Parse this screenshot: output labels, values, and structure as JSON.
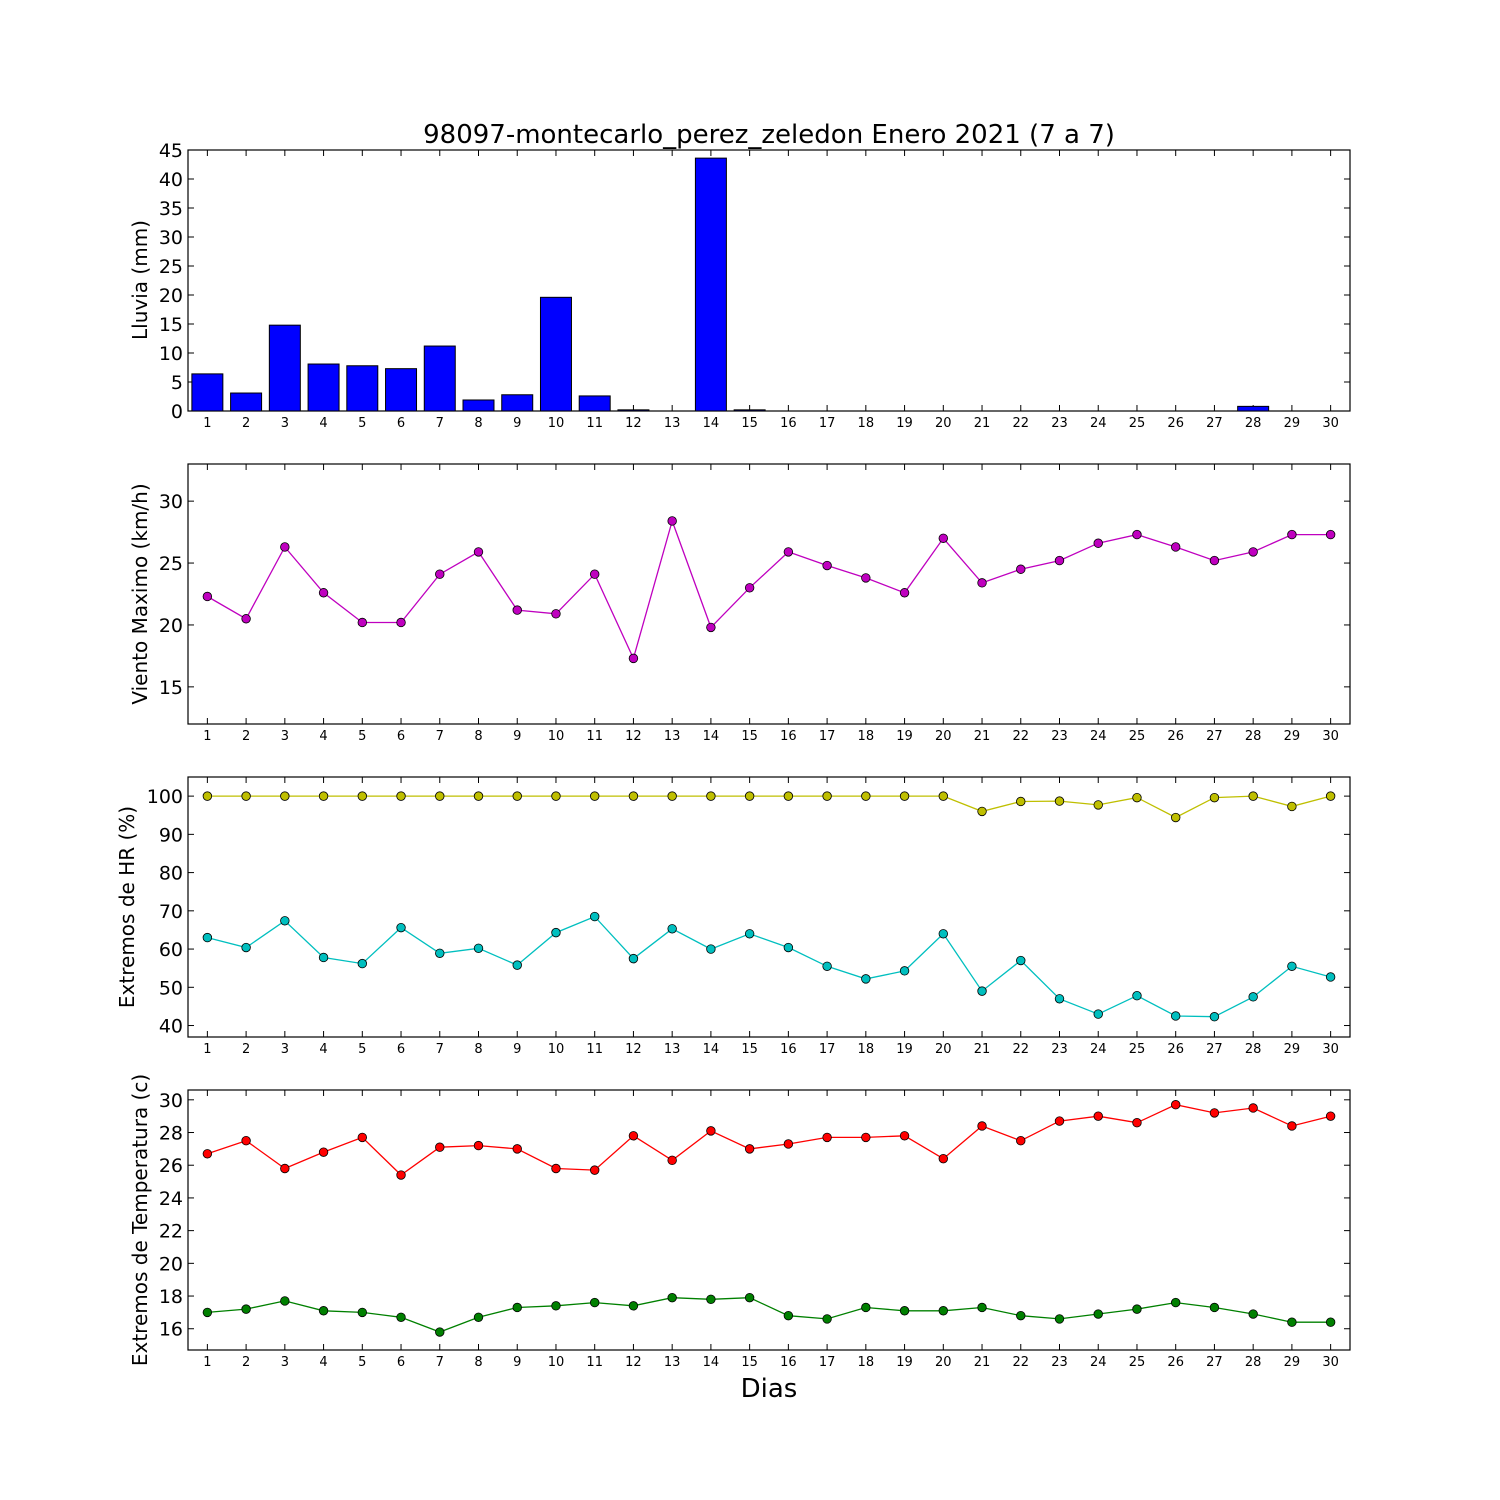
{
  "title": "98097-montecarlo_perez_zeledon Enero 2021  (7 a 7)",
  "xlabel": "Dias",
  "chart_data": [
    {
      "type": "bar",
      "ylabel": "Lluvia (mm)",
      "ylim": [
        0,
        45
      ],
      "yticks": [
        0,
        5,
        10,
        15,
        20,
        25,
        30,
        35,
        40,
        45
      ],
      "categories": [
        1,
        2,
        3,
        4,
        5,
        6,
        7,
        8,
        9,
        10,
        11,
        12,
        13,
        14,
        15,
        16,
        17,
        18,
        19,
        20,
        21,
        22,
        23,
        24,
        25,
        26,
        27,
        28,
        29,
        30
      ],
      "series": [
        {
          "color": "#0000ff",
          "values": [
            6.4,
            3.1,
            14.8,
            8.1,
            7.8,
            7.3,
            11.2,
            1.9,
            2.8,
            19.6,
            2.6,
            0.2,
            0,
            43.6,
            0.2,
            0,
            0,
            0,
            0,
            0,
            0,
            0,
            0,
            0,
            0,
            0,
            0,
            0.8,
            0,
            0
          ]
        }
      ]
    },
    {
      "type": "line",
      "ylabel": "Viento Maximo (km/h)",
      "ylim": [
        12,
        33
      ],
      "yticks": [
        15,
        20,
        25,
        30
      ],
      "categories": [
        1,
        2,
        3,
        4,
        5,
        6,
        7,
        8,
        9,
        10,
        11,
        12,
        13,
        14,
        15,
        16,
        17,
        18,
        19,
        20,
        21,
        22,
        23,
        24,
        25,
        26,
        27,
        28,
        29,
        30
      ],
      "series": [
        {
          "color": "#bf00bf",
          "values": [
            22.3,
            20.5,
            26.3,
            22.6,
            20.2,
            20.2,
            24.1,
            25.9,
            21.2,
            20.9,
            24.1,
            17.3,
            28.4,
            19.8,
            23.0,
            25.9,
            24.8,
            23.8,
            22.6,
            27.0,
            23.4,
            24.5,
            25.2,
            26.6,
            27.3,
            26.3,
            25.2,
            25.9,
            27.3,
            27.3
          ]
        }
      ]
    },
    {
      "type": "line",
      "ylabel": "Extremos de HR (%)",
      "ylim": [
        37,
        105
      ],
      "yticks": [
        40,
        50,
        60,
        70,
        80,
        90,
        100
      ],
      "categories": [
        1,
        2,
        3,
        4,
        5,
        6,
        7,
        8,
        9,
        10,
        11,
        12,
        13,
        14,
        15,
        16,
        17,
        18,
        19,
        20,
        21,
        22,
        23,
        24,
        25,
        26,
        27,
        28,
        29,
        30
      ],
      "series": [
        {
          "color": "#bfbf00",
          "values": [
            100,
            100,
            100,
            100,
            100,
            100,
            100,
            100,
            100,
            100,
            100,
            100,
            100,
            100,
            100,
            100,
            100,
            100,
            100,
            100,
            96,
            98.6,
            98.7,
            97.7,
            99.6,
            94.4,
            99.6,
            100,
            97.3,
            100
          ]
        },
        {
          "color": "#00bfbf",
          "values": [
            63,
            60.4,
            67.4,
            57.8,
            56.2,
            65.6,
            58.9,
            60.2,
            55.8,
            64.3,
            68.5,
            57.5,
            65.3,
            60,
            64,
            60.4,
            55.5,
            52.2,
            54.3,
            64,
            49,
            57,
            47,
            43,
            47.8,
            42.5,
            42.3,
            47.5,
            55.5,
            52.7
          ]
        }
      ]
    },
    {
      "type": "line",
      "ylabel": "Extremos de Temperatura (c)",
      "ylim": [
        14.7,
        30.6
      ],
      "yticks": [
        16,
        18,
        20,
        22,
        24,
        26,
        28,
        30
      ],
      "categories": [
        1,
        2,
        3,
        4,
        5,
        6,
        7,
        8,
        9,
        10,
        11,
        12,
        13,
        14,
        15,
        16,
        17,
        18,
        19,
        20,
        21,
        22,
        23,
        24,
        25,
        26,
        27,
        28,
        29,
        30
      ],
      "series": [
        {
          "color": "#ff0000",
          "values": [
            26.7,
            27.5,
            25.8,
            26.8,
            27.7,
            25.4,
            27.1,
            27.2,
            27.0,
            25.8,
            25.7,
            27.8,
            26.3,
            28.1,
            27.0,
            27.3,
            27.7,
            27.7,
            27.8,
            26.4,
            28.4,
            27.5,
            28.7,
            29.0,
            28.6,
            29.7,
            29.2,
            29.5,
            28.4,
            29.0
          ]
        },
        {
          "color": "#008000",
          "values": [
            17.0,
            17.2,
            17.7,
            17.1,
            17.0,
            16.7,
            15.8,
            16.7,
            17.3,
            17.4,
            17.6,
            17.4,
            17.9,
            17.8,
            17.9,
            16.8,
            16.6,
            17.3,
            17.1,
            17.1,
            17.3,
            16.8,
            16.6,
            16.9,
            17.2,
            17.6,
            17.3,
            16.9,
            16.4,
            16.4
          ]
        }
      ]
    }
  ]
}
